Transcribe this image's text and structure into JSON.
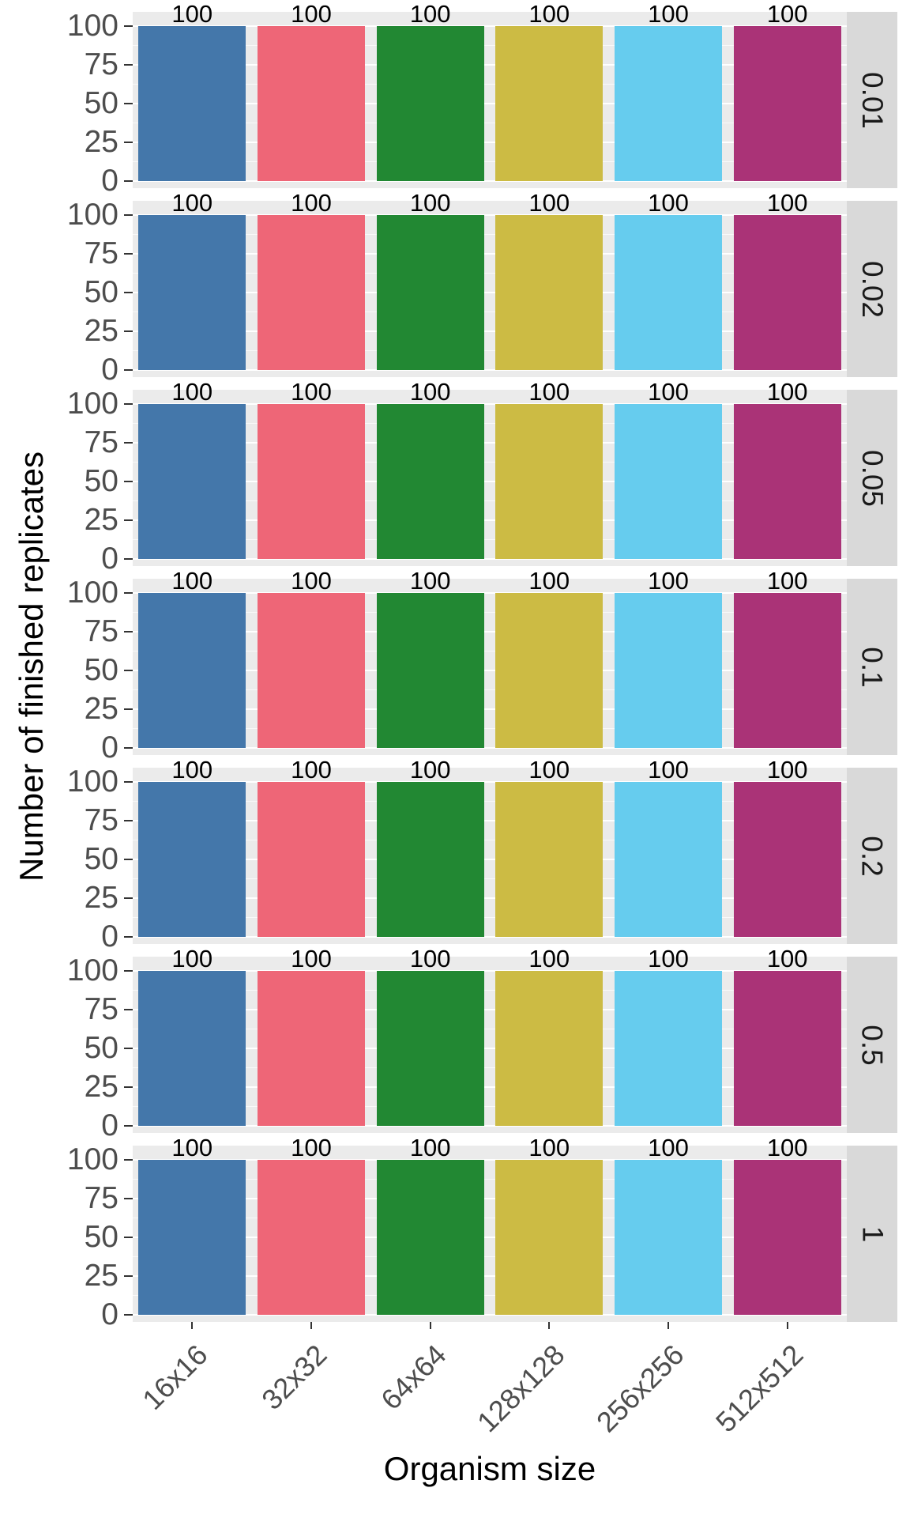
{
  "chart_data": {
    "type": "bar",
    "title": "",
    "xlabel": "Organism size",
    "ylabel": "Number of finished replicates",
    "categories": [
      "16x16",
      "32x32",
      "64x64",
      "128x128",
      "256x256",
      "512x512"
    ],
    "facets": [
      {
        "label": "0.01",
        "values": [
          100,
          100,
          100,
          100,
          100,
          100
        ]
      },
      {
        "label": "0.02",
        "values": [
          100,
          100,
          100,
          100,
          100,
          100
        ]
      },
      {
        "label": "0.05",
        "values": [
          100,
          100,
          100,
          100,
          100,
          100
        ]
      },
      {
        "label": "0.1",
        "values": [
          100,
          100,
          100,
          100,
          100,
          100
        ]
      },
      {
        "label": "0.2",
        "values": [
          100,
          100,
          100,
          100,
          100,
          100
        ]
      },
      {
        "label": "0.5",
        "values": [
          100,
          100,
          100,
          100,
          100,
          100
        ]
      },
      {
        "label": "1",
        "values": [
          100,
          100,
          100,
          100,
          100,
          100
        ]
      }
    ],
    "bar_colors": [
      "#4477AA",
      "#EE6677",
      "#228833",
      "#CCBB44",
      "#66CCEE",
      "#AA3377"
    ],
    "y_ticks": [
      0,
      25,
      50,
      75,
      100
    ],
    "y_minor_ticks": [
      12.5,
      37.5,
      62.5,
      87.5
    ],
    "ylim": [
      0,
      100
    ],
    "grid": true,
    "legend": "none",
    "facet_strip_side": "right",
    "colors": {
      "panel_bg": "#EBEBEB",
      "strip_bg": "#D9D9D9",
      "grid_major": "#FFFFFF",
      "grid_minor": "#FFFFFF",
      "axis_text": "#4D4D4D",
      "tick_mark": "#333333",
      "bar_label_text": "#000000"
    }
  }
}
